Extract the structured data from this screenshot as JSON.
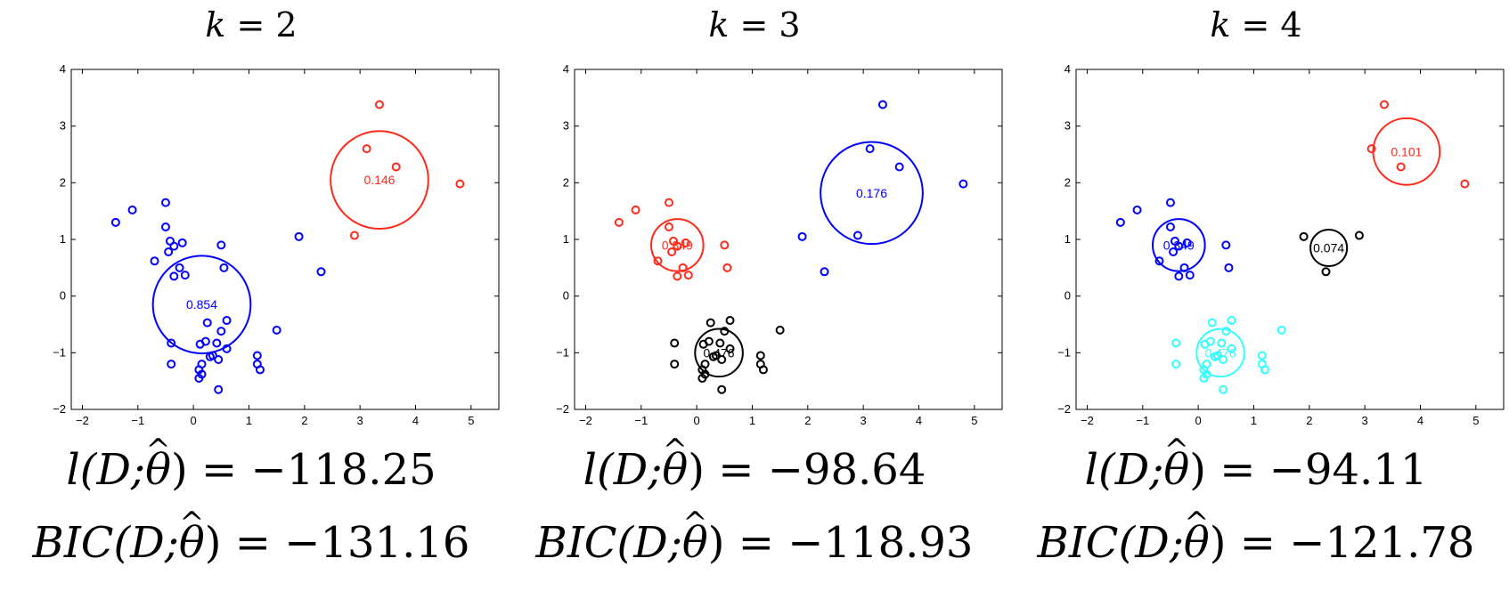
{
  "panels": [
    {
      "title_var": "k",
      "title_eq": " = ",
      "title_k": "2",
      "ll_value": "−118.25",
      "bic_value": "−131.16"
    },
    {
      "title_var": "k",
      "title_eq": " = ",
      "title_k": "3",
      "ll_value": "−98.64",
      "bic_value": "−118.93"
    },
    {
      "title_var": "k",
      "title_eq": " = ",
      "title_k": "4",
      "ll_value": "−94.11",
      "bic_value": "−121.78"
    }
  ],
  "formula_text": {
    "ll_prefix": "l(D;",
    "bic_prefix": "BIC(D;",
    "theta": "θ",
    "suffix": ") = "
  },
  "chart_data": [
    {
      "type": "scatter",
      "title": "k = 2",
      "xlim": [
        -2.2,
        5.5
      ],
      "ylim": [
        -2,
        4
      ],
      "xticks": [
        -2,
        -1,
        0,
        1,
        2,
        3,
        4,
        5
      ],
      "yticks": [
        -2,
        -1,
        0,
        1,
        2,
        3,
        4
      ],
      "colors": {
        "blue": "#0000ff",
        "red": "#ff2a1a",
        "black": "#000000",
        "cyan": "#33ffff"
      },
      "points": [
        {
          "x": -1.4,
          "y": 1.3,
          "c": "blue"
        },
        {
          "x": -1.1,
          "y": 1.52,
          "c": "blue"
        },
        {
          "x": -0.5,
          "y": 1.65,
          "c": "blue"
        },
        {
          "x": -0.5,
          "y": 1.22,
          "c": "blue"
        },
        {
          "x": -0.42,
          "y": 0.97,
          "c": "blue"
        },
        {
          "x": -0.35,
          "y": 0.88,
          "c": "blue"
        },
        {
          "x": -0.45,
          "y": 0.78,
          "c": "blue"
        },
        {
          "x": -0.2,
          "y": 0.94,
          "c": "blue"
        },
        {
          "x": -0.7,
          "y": 0.62,
          "c": "blue"
        },
        {
          "x": -0.25,
          "y": 0.5,
          "c": "blue"
        },
        {
          "x": -0.15,
          "y": 0.37,
          "c": "blue"
        },
        {
          "x": -0.35,
          "y": 0.35,
          "c": "blue"
        },
        {
          "x": 0.5,
          "y": 0.9,
          "c": "blue"
        },
        {
          "x": 0.55,
          "y": 0.5,
          "c": "blue"
        },
        {
          "x": 0.25,
          "y": -0.47,
          "c": "blue"
        },
        {
          "x": 0.6,
          "y": -0.43,
          "c": "blue"
        },
        {
          "x": 0.5,
          "y": -0.62,
          "c": "blue"
        },
        {
          "x": -0.4,
          "y": -0.83,
          "c": "blue"
        },
        {
          "x": 0.12,
          "y": -0.85,
          "c": "blue"
        },
        {
          "x": 0.22,
          "y": -0.8,
          "c": "blue"
        },
        {
          "x": 0.42,
          "y": -0.83,
          "c": "blue"
        },
        {
          "x": 0.6,
          "y": -0.93,
          "c": "blue"
        },
        {
          "x": 0.35,
          "y": -1.05,
          "c": "blue"
        },
        {
          "x": 0.3,
          "y": -1.07,
          "c": "blue"
        },
        {
          "x": 0.45,
          "y": -1.12,
          "c": "blue"
        },
        {
          "x": 0.15,
          "y": -1.2,
          "c": "blue"
        },
        {
          "x": -0.4,
          "y": -1.2,
          "c": "blue"
        },
        {
          "x": 0.1,
          "y": -1.3,
          "c": "blue"
        },
        {
          "x": 0.15,
          "y": -1.38,
          "c": "blue"
        },
        {
          "x": 0.1,
          "y": -1.45,
          "c": "blue"
        },
        {
          "x": 0.45,
          "y": -1.65,
          "c": "blue"
        },
        {
          "x": 1.15,
          "y": -1.05,
          "c": "blue"
        },
        {
          "x": 1.15,
          "y": -1.2,
          "c": "blue"
        },
        {
          "x": 1.2,
          "y": -1.3,
          "c": "blue"
        },
        {
          "x": 1.5,
          "y": -0.6,
          "c": "blue"
        },
        {
          "x": 1.9,
          "y": 1.05,
          "c": "blue"
        },
        {
          "x": 2.3,
          "y": 0.43,
          "c": "blue"
        },
        {
          "x": 3.35,
          "y": 3.38,
          "c": "red"
        },
        {
          "x": 3.12,
          "y": 2.6,
          "c": "red"
        },
        {
          "x": 3.65,
          "y": 2.28,
          "c": "red"
        },
        {
          "x": 4.8,
          "y": 1.98,
          "c": "red"
        },
        {
          "x": 2.9,
          "y": 1.07,
          "c": "red"
        }
      ],
      "components": [
        {
          "cx": 0.15,
          "cy": -0.15,
          "r": 0.88,
          "weight": "0.854",
          "c": "blue"
        },
        {
          "cx": 3.35,
          "cy": 2.05,
          "r": 0.88,
          "weight": "0.146",
          "c": "red"
        }
      ]
    },
    {
      "type": "scatter",
      "title": "k = 3",
      "xlim": [
        -2.2,
        5.5
      ],
      "ylim": [
        -2,
        4
      ],
      "xticks": [
        -2,
        -1,
        0,
        1,
        2,
        3,
        4,
        5
      ],
      "yticks": [
        -2,
        -1,
        0,
        1,
        2,
        3,
        4
      ],
      "colors": {
        "blue": "#0000ff",
        "red": "#ff2a1a",
        "black": "#000000",
        "cyan": "#33ffff"
      },
      "points": [
        {
          "x": -1.4,
          "y": 1.3,
          "c": "red"
        },
        {
          "x": -1.1,
          "y": 1.52,
          "c": "red"
        },
        {
          "x": -0.5,
          "y": 1.65,
          "c": "red"
        },
        {
          "x": -0.5,
          "y": 1.22,
          "c": "red"
        },
        {
          "x": -0.42,
          "y": 0.97,
          "c": "red"
        },
        {
          "x": -0.35,
          "y": 0.88,
          "c": "red"
        },
        {
          "x": -0.45,
          "y": 0.78,
          "c": "red"
        },
        {
          "x": -0.2,
          "y": 0.94,
          "c": "red"
        },
        {
          "x": -0.7,
          "y": 0.62,
          "c": "red"
        },
        {
          "x": -0.25,
          "y": 0.5,
          "c": "red"
        },
        {
          "x": -0.15,
          "y": 0.37,
          "c": "red"
        },
        {
          "x": -0.35,
          "y": 0.35,
          "c": "red"
        },
        {
          "x": 0.5,
          "y": 0.9,
          "c": "red"
        },
        {
          "x": 0.55,
          "y": 0.5,
          "c": "red"
        },
        {
          "x": 0.25,
          "y": -0.47,
          "c": "black"
        },
        {
          "x": 0.6,
          "y": -0.43,
          "c": "black"
        },
        {
          "x": 0.5,
          "y": -0.62,
          "c": "black"
        },
        {
          "x": -0.4,
          "y": -0.83,
          "c": "black"
        },
        {
          "x": 0.12,
          "y": -0.85,
          "c": "black"
        },
        {
          "x": 0.22,
          "y": -0.8,
          "c": "black"
        },
        {
          "x": 0.42,
          "y": -0.83,
          "c": "black"
        },
        {
          "x": 0.6,
          "y": -0.93,
          "c": "black"
        },
        {
          "x": 0.35,
          "y": -1.05,
          "c": "black"
        },
        {
          "x": 0.3,
          "y": -1.07,
          "c": "black"
        },
        {
          "x": 0.45,
          "y": -1.12,
          "c": "black"
        },
        {
          "x": 0.15,
          "y": -1.2,
          "c": "black"
        },
        {
          "x": -0.4,
          "y": -1.2,
          "c": "black"
        },
        {
          "x": 0.1,
          "y": -1.3,
          "c": "black"
        },
        {
          "x": 0.15,
          "y": -1.38,
          "c": "black"
        },
        {
          "x": 0.1,
          "y": -1.45,
          "c": "black"
        },
        {
          "x": 0.45,
          "y": -1.65,
          "c": "black"
        },
        {
          "x": 1.15,
          "y": -1.05,
          "c": "black"
        },
        {
          "x": 1.15,
          "y": -1.2,
          "c": "black"
        },
        {
          "x": 1.2,
          "y": -1.3,
          "c": "black"
        },
        {
          "x": 1.5,
          "y": -0.6,
          "c": "black"
        },
        {
          "x": 1.9,
          "y": 1.05,
          "c": "blue"
        },
        {
          "x": 2.3,
          "y": 0.43,
          "c": "blue"
        },
        {
          "x": 3.35,
          "y": 3.38,
          "c": "blue"
        },
        {
          "x": 3.12,
          "y": 2.6,
          "c": "blue"
        },
        {
          "x": 3.65,
          "y": 2.28,
          "c": "blue"
        },
        {
          "x": 4.8,
          "y": 1.98,
          "c": "blue"
        },
        {
          "x": 2.9,
          "y": 1.07,
          "c": "blue"
        }
      ],
      "components": [
        {
          "cx": -0.35,
          "cy": 0.9,
          "r": 0.47,
          "weight": "0.349",
          "c": "red"
        },
        {
          "cx": 0.4,
          "cy": -1.0,
          "r": 0.43,
          "weight": "0.476",
          "c": "black"
        },
        {
          "cx": 3.15,
          "cy": 1.82,
          "r": 0.92,
          "weight": "0.176",
          "c": "blue"
        }
      ]
    },
    {
      "type": "scatter",
      "title": "k = 4",
      "xlim": [
        -2.2,
        5.5
      ],
      "ylim": [
        -2,
        4
      ],
      "xticks": [
        -2,
        -1,
        0,
        1,
        2,
        3,
        4,
        5
      ],
      "yticks": [
        -2,
        -1,
        0,
        1,
        2,
        3,
        4
      ],
      "colors": {
        "blue": "#0000ff",
        "red": "#ff2a1a",
        "black": "#000000",
        "cyan": "#33ffff"
      },
      "points": [
        {
          "x": -1.4,
          "y": 1.3,
          "c": "blue"
        },
        {
          "x": -1.1,
          "y": 1.52,
          "c": "blue"
        },
        {
          "x": -0.5,
          "y": 1.65,
          "c": "blue"
        },
        {
          "x": -0.5,
          "y": 1.22,
          "c": "blue"
        },
        {
          "x": -0.42,
          "y": 0.97,
          "c": "blue"
        },
        {
          "x": -0.35,
          "y": 0.88,
          "c": "blue"
        },
        {
          "x": -0.45,
          "y": 0.78,
          "c": "blue"
        },
        {
          "x": -0.2,
          "y": 0.94,
          "c": "blue"
        },
        {
          "x": -0.7,
          "y": 0.62,
          "c": "blue"
        },
        {
          "x": -0.25,
          "y": 0.5,
          "c": "blue"
        },
        {
          "x": -0.15,
          "y": 0.37,
          "c": "blue"
        },
        {
          "x": -0.35,
          "y": 0.35,
          "c": "blue"
        },
        {
          "x": 0.5,
          "y": 0.9,
          "c": "blue"
        },
        {
          "x": 0.55,
          "y": 0.5,
          "c": "blue"
        },
        {
          "x": 0.25,
          "y": -0.47,
          "c": "cyan"
        },
        {
          "x": 0.6,
          "y": -0.43,
          "c": "cyan"
        },
        {
          "x": 0.5,
          "y": -0.62,
          "c": "cyan"
        },
        {
          "x": -0.4,
          "y": -0.83,
          "c": "cyan"
        },
        {
          "x": 0.12,
          "y": -0.85,
          "c": "cyan"
        },
        {
          "x": 0.22,
          "y": -0.8,
          "c": "cyan"
        },
        {
          "x": 0.42,
          "y": -0.83,
          "c": "cyan"
        },
        {
          "x": 0.6,
          "y": -0.93,
          "c": "cyan"
        },
        {
          "x": 0.35,
          "y": -1.05,
          "c": "cyan"
        },
        {
          "x": 0.3,
          "y": -1.07,
          "c": "cyan"
        },
        {
          "x": 0.45,
          "y": -1.12,
          "c": "cyan"
        },
        {
          "x": 0.15,
          "y": -1.2,
          "c": "cyan"
        },
        {
          "x": -0.4,
          "y": -1.2,
          "c": "cyan"
        },
        {
          "x": 0.1,
          "y": -1.3,
          "c": "cyan"
        },
        {
          "x": 0.15,
          "y": -1.38,
          "c": "cyan"
        },
        {
          "x": 0.1,
          "y": -1.45,
          "c": "cyan"
        },
        {
          "x": 0.45,
          "y": -1.65,
          "c": "cyan"
        },
        {
          "x": 1.15,
          "y": -1.05,
          "c": "cyan"
        },
        {
          "x": 1.15,
          "y": -1.2,
          "c": "cyan"
        },
        {
          "x": 1.2,
          "y": -1.3,
          "c": "cyan"
        },
        {
          "x": 1.5,
          "y": -0.6,
          "c": "cyan"
        },
        {
          "x": 1.9,
          "y": 1.05,
          "c": "black"
        },
        {
          "x": 2.3,
          "y": 0.43,
          "c": "black"
        },
        {
          "x": 2.9,
          "y": 1.07,
          "c": "black"
        },
        {
          "x": 3.35,
          "y": 3.38,
          "c": "red"
        },
        {
          "x": 3.12,
          "y": 2.6,
          "c": "red"
        },
        {
          "x": 3.65,
          "y": 2.28,
          "c": "red"
        },
        {
          "x": 4.8,
          "y": 1.98,
          "c": "red"
        }
      ],
      "components": [
        {
          "cx": -0.35,
          "cy": 0.9,
          "r": 0.47,
          "weight": "0.349",
          "c": "blue"
        },
        {
          "cx": 0.4,
          "cy": -1.0,
          "r": 0.43,
          "weight": "0.476",
          "c": "cyan"
        },
        {
          "cx": 2.35,
          "cy": 0.85,
          "r": 0.33,
          "weight": "0.074",
          "c": "black"
        },
        {
          "cx": 3.75,
          "cy": 2.55,
          "r": 0.6,
          "weight": "0.101",
          "c": "red"
        }
      ]
    }
  ]
}
